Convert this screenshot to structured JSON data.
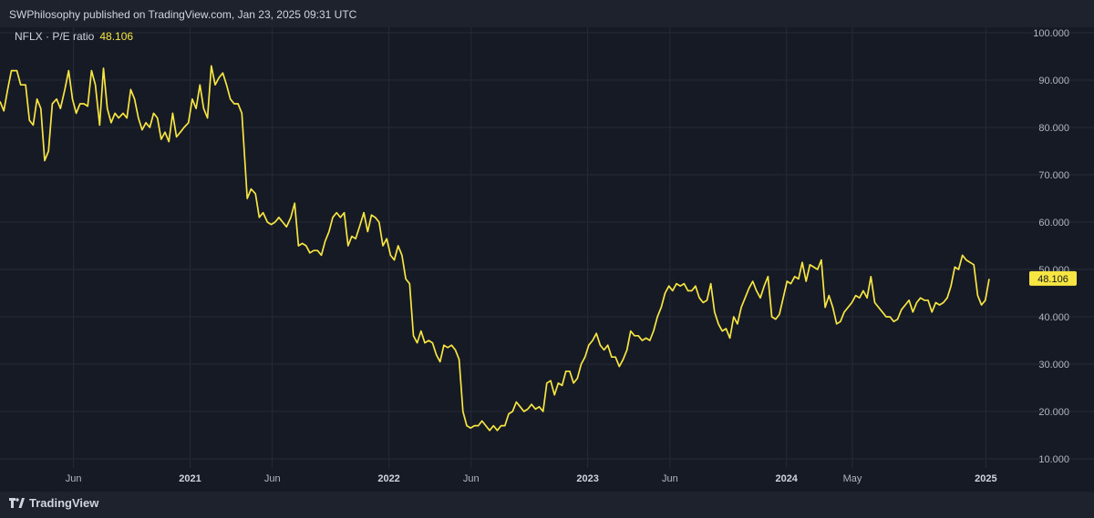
{
  "header": {
    "attribution": "SWPhilosophy published on TradingView.com, Jan 23, 2025 09:31 UTC"
  },
  "legend": {
    "symbol": "NFLX · P/E ratio",
    "value": "48.106"
  },
  "brand": {
    "name": "TradingView",
    "icon": "tradingview-logo-icon"
  },
  "colors": {
    "line": "#f7e542",
    "background": "#161a25",
    "grid": "#262a35",
    "axis_text": "#b2b5be",
    "price_label_bg": "#f7e542"
  },
  "chart_data": {
    "type": "line",
    "title": "",
    "xlabel": "",
    "ylabel": "",
    "ylim": [
      10,
      100
    ],
    "y_ticks": [
      "100.000",
      "90.000",
      "80.000",
      "70.000",
      "60.000",
      "50.000",
      "40.000",
      "30.000",
      "20.000",
      "10.000"
    ],
    "x_ticks": [
      {
        "label": "Jun",
        "date": "2020-06-01",
        "bold": false
      },
      {
        "label": "2021",
        "date": "2021-01-01",
        "bold": true
      },
      {
        "label": "Jun",
        "date": "2021-06-01",
        "bold": false
      },
      {
        "label": "2022",
        "date": "2022-01-01",
        "bold": true
      },
      {
        "label": "Jun",
        "date": "2022-06-01",
        "bold": false
      },
      {
        "label": "2023",
        "date": "2023-01-01",
        "bold": true
      },
      {
        "label": "Jun",
        "date": "2023-06-01",
        "bold": false
      },
      {
        "label": "2024",
        "date": "2024-01-01",
        "bold": true
      },
      {
        "label": "May",
        "date": "2024-05-01",
        "bold": false
      },
      {
        "label": "2025",
        "date": "2025-01-01",
        "bold": true
      }
    ],
    "xlim": [
      "2020-01-18",
      "2025-03-10"
    ],
    "last_value_label": "48.106",
    "grid": true,
    "series": [
      {
        "name": "",
        "points": [
          [
            "2020-01-18",
            85.5
          ],
          [
            "2020-01-25",
            83.5
          ],
          [
            "2020-02-01",
            88
          ],
          [
            "2020-02-08",
            92
          ],
          [
            "2020-02-18",
            92
          ],
          [
            "2020-02-25",
            89
          ],
          [
            "2020-03-05",
            89
          ],
          [
            "2020-03-12",
            81.5
          ],
          [
            "2020-03-19",
            80.5
          ],
          [
            "2020-03-26",
            86
          ],
          [
            "2020-04-02",
            84
          ],
          [
            "2020-04-09",
            73
          ],
          [
            "2020-04-16",
            75
          ],
          [
            "2020-04-23",
            85
          ],
          [
            "2020-05-01",
            86
          ],
          [
            "2020-05-08",
            84
          ],
          [
            "2020-05-16",
            88
          ],
          [
            "2020-05-23",
            92
          ],
          [
            "2020-05-30",
            86
          ],
          [
            "2020-06-06",
            83
          ],
          [
            "2020-06-13",
            85
          ],
          [
            "2020-06-20",
            85
          ],
          [
            "2020-06-27",
            84.5
          ],
          [
            "2020-07-04",
            92
          ],
          [
            "2020-07-11",
            89
          ],
          [
            "2020-07-19",
            80.5
          ],
          [
            "2020-07-26",
            92.5
          ],
          [
            "2020-08-02",
            84
          ],
          [
            "2020-08-09",
            81
          ],
          [
            "2020-08-16",
            83
          ],
          [
            "2020-08-23",
            82
          ],
          [
            "2020-08-31",
            83
          ],
          [
            "2020-09-07",
            82
          ],
          [
            "2020-09-14",
            88
          ],
          [
            "2020-09-21",
            86
          ],
          [
            "2020-09-28",
            82
          ],
          [
            "2020-10-05",
            79.5
          ],
          [
            "2020-10-12",
            81
          ],
          [
            "2020-10-19",
            80
          ],
          [
            "2020-10-26",
            83
          ],
          [
            "2020-11-02",
            82
          ],
          [
            "2020-11-09",
            77.5
          ],
          [
            "2020-11-16",
            79
          ],
          [
            "2020-11-23",
            77
          ],
          [
            "2020-11-30",
            83
          ],
          [
            "2020-12-07",
            78
          ],
          [
            "2020-12-14",
            79
          ],
          [
            "2020-12-21",
            80
          ],
          [
            "2020-12-29",
            81
          ],
          [
            "2021-01-05",
            86
          ],
          [
            "2021-01-12",
            84
          ],
          [
            "2021-01-19",
            89
          ],
          [
            "2021-01-26",
            84
          ],
          [
            "2021-02-02",
            82
          ],
          [
            "2021-02-09",
            93
          ],
          [
            "2021-02-16",
            89
          ],
          [
            "2021-02-23",
            90.5
          ],
          [
            "2021-03-02",
            91.5
          ],
          [
            "2021-03-09",
            89
          ],
          [
            "2021-03-16",
            86
          ],
          [
            "2021-03-23",
            85
          ],
          [
            "2021-03-30",
            85
          ],
          [
            "2021-04-06",
            83
          ],
          [
            "2021-04-16",
            65
          ],
          [
            "2021-04-23",
            67
          ],
          [
            "2021-05-01",
            66
          ],
          [
            "2021-05-08",
            61
          ],
          [
            "2021-05-15",
            62
          ],
          [
            "2021-05-23",
            60
          ],
          [
            "2021-05-30",
            59.5
          ],
          [
            "2021-06-06",
            60
          ],
          [
            "2021-06-13",
            61
          ],
          [
            "2021-06-20",
            60
          ],
          [
            "2021-06-27",
            59
          ],
          [
            "2021-07-05",
            61
          ],
          [
            "2021-07-12",
            64
          ],
          [
            "2021-07-19",
            55
          ],
          [
            "2021-07-26",
            55.5
          ],
          [
            "2021-08-02",
            55
          ],
          [
            "2021-08-09",
            53.5
          ],
          [
            "2021-08-16",
            54
          ],
          [
            "2021-08-23",
            54
          ],
          [
            "2021-08-30",
            53
          ],
          [
            "2021-09-06",
            56
          ],
          [
            "2021-09-13",
            58
          ],
          [
            "2021-09-20",
            61
          ],
          [
            "2021-09-27",
            62
          ],
          [
            "2021-10-04",
            61
          ],
          [
            "2021-10-11",
            62
          ],
          [
            "2021-10-18",
            55
          ],
          [
            "2021-10-25",
            57
          ],
          [
            "2021-11-01",
            56.5
          ],
          [
            "2021-11-08",
            59
          ],
          [
            "2021-11-16",
            62
          ],
          [
            "2021-11-23",
            58
          ],
          [
            "2021-11-30",
            61.5
          ],
          [
            "2021-12-07",
            61
          ],
          [
            "2021-12-14",
            60
          ],
          [
            "2021-12-21",
            55
          ],
          [
            "2021-12-28",
            56.5
          ],
          [
            "2022-01-04",
            53
          ],
          [
            "2022-01-11",
            52
          ],
          [
            "2022-01-18",
            55
          ],
          [
            "2022-01-25",
            53
          ],
          [
            "2022-02-01",
            48
          ],
          [
            "2022-02-08",
            47
          ],
          [
            "2022-02-15",
            36
          ],
          [
            "2022-02-22",
            34.5
          ],
          [
            "2022-03-01",
            37
          ],
          [
            "2022-03-08",
            34.5
          ],
          [
            "2022-03-15",
            35
          ],
          [
            "2022-03-22",
            34.5
          ],
          [
            "2022-03-29",
            32
          ],
          [
            "2022-04-05",
            30.5
          ],
          [
            "2022-04-12",
            34
          ],
          [
            "2022-04-19",
            33.5
          ],
          [
            "2022-04-26",
            34
          ],
          [
            "2022-05-03",
            33
          ],
          [
            "2022-05-10",
            31
          ],
          [
            "2022-05-17",
            20
          ],
          [
            "2022-05-24",
            17
          ],
          [
            "2022-05-31",
            16.5
          ],
          [
            "2022-06-07",
            17
          ],
          [
            "2022-06-14",
            17
          ],
          [
            "2022-06-21",
            18
          ],
          [
            "2022-06-28",
            17
          ],
          [
            "2022-07-05",
            16
          ],
          [
            "2022-07-12",
            17
          ],
          [
            "2022-07-19",
            16
          ],
          [
            "2022-07-26",
            17
          ],
          [
            "2022-08-02",
            17
          ],
          [
            "2022-08-09",
            19.5
          ],
          [
            "2022-08-16",
            20
          ],
          [
            "2022-08-23",
            22
          ],
          [
            "2022-08-30",
            21
          ],
          [
            "2022-09-06",
            20
          ],
          [
            "2022-09-13",
            20.5
          ],
          [
            "2022-09-20",
            21.5
          ],
          [
            "2022-09-27",
            20.5
          ],
          [
            "2022-10-04",
            21
          ],
          [
            "2022-10-11",
            20
          ],
          [
            "2022-10-18",
            26
          ],
          [
            "2022-10-25",
            26.5
          ],
          [
            "2022-11-01",
            23.5
          ],
          [
            "2022-11-08",
            26
          ],
          [
            "2022-11-15",
            25.5
          ],
          [
            "2022-11-22",
            28.5
          ],
          [
            "2022-11-29",
            28.5
          ],
          [
            "2022-12-06",
            26
          ],
          [
            "2022-12-13",
            27
          ],
          [
            "2022-12-20",
            30
          ],
          [
            "2022-12-27",
            31.5
          ],
          [
            "2023-01-03",
            34
          ],
          [
            "2023-01-10",
            35
          ],
          [
            "2023-01-17",
            36.5
          ],
          [
            "2023-01-24",
            34
          ],
          [
            "2023-01-31",
            33
          ],
          [
            "2023-02-07",
            34
          ],
          [
            "2023-02-14",
            31.5
          ],
          [
            "2023-02-21",
            31.5
          ],
          [
            "2023-02-28",
            29.5
          ],
          [
            "2023-03-07",
            31
          ],
          [
            "2023-03-14",
            33
          ],
          [
            "2023-03-21",
            37
          ],
          [
            "2023-03-28",
            36
          ],
          [
            "2023-04-04",
            36
          ],
          [
            "2023-04-11",
            35
          ],
          [
            "2023-04-18",
            35.5
          ],
          [
            "2023-04-25",
            35
          ],
          [
            "2023-05-02",
            37
          ],
          [
            "2023-05-09",
            40
          ],
          [
            "2023-05-16",
            42
          ],
          [
            "2023-05-23",
            45
          ],
          [
            "2023-05-30",
            46.5
          ],
          [
            "2023-06-06",
            45.5
          ],
          [
            "2023-06-13",
            47
          ],
          [
            "2023-06-20",
            46.5
          ],
          [
            "2023-06-27",
            47
          ],
          [
            "2023-07-04",
            45.5
          ],
          [
            "2023-07-11",
            45.5
          ],
          [
            "2023-07-18",
            46.5
          ],
          [
            "2023-07-25",
            44
          ],
          [
            "2023-08-01",
            43
          ],
          [
            "2023-08-08",
            43.5
          ],
          [
            "2023-08-15",
            47
          ],
          [
            "2023-08-22",
            41
          ],
          [
            "2023-08-29",
            38.5
          ],
          [
            "2023-09-05",
            37
          ],
          [
            "2023-09-12",
            37.5
          ],
          [
            "2023-09-19",
            35.5
          ],
          [
            "2023-09-26",
            40
          ],
          [
            "2023-10-03",
            38.5
          ],
          [
            "2023-10-10",
            42
          ],
          [
            "2023-10-17",
            44
          ],
          [
            "2023-10-24",
            46
          ],
          [
            "2023-10-31",
            47.5
          ],
          [
            "2023-11-07",
            45.5
          ],
          [
            "2023-11-14",
            44
          ],
          [
            "2023-11-21",
            46.5
          ],
          [
            "2023-11-28",
            48.5
          ],
          [
            "2023-12-05",
            40
          ],
          [
            "2023-12-12",
            39.5
          ],
          [
            "2023-12-19",
            40.5
          ],
          [
            "2024-01-02",
            47.5
          ],
          [
            "2024-01-09",
            47
          ],
          [
            "2024-01-16",
            48.5
          ],
          [
            "2024-01-23",
            48
          ],
          [
            "2024-01-30",
            51.5
          ],
          [
            "2024-02-06",
            47.5
          ],
          [
            "2024-02-13",
            51
          ],
          [
            "2024-02-20",
            50.5
          ],
          [
            "2024-02-27",
            50
          ],
          [
            "2024-03-05",
            52
          ],
          [
            "2024-03-12",
            42
          ],
          [
            "2024-03-19",
            44.5
          ],
          [
            "2024-03-26",
            42
          ],
          [
            "2024-04-02",
            38.5
          ],
          [
            "2024-04-09",
            39
          ],
          [
            "2024-04-16",
            41
          ],
          [
            "2024-04-23",
            42
          ],
          [
            "2024-04-30",
            43
          ],
          [
            "2024-05-07",
            44.5
          ],
          [
            "2024-05-14",
            44
          ],
          [
            "2024-05-21",
            45.5
          ],
          [
            "2024-05-28",
            44
          ],
          [
            "2024-06-04",
            48.5
          ],
          [
            "2024-06-11",
            43
          ],
          [
            "2024-06-18",
            42
          ],
          [
            "2024-06-25",
            41
          ],
          [
            "2024-07-02",
            40
          ],
          [
            "2024-07-09",
            40
          ],
          [
            "2024-07-16",
            39
          ],
          [
            "2024-07-23",
            39.5
          ],
          [
            "2024-07-30",
            41.5
          ],
          [
            "2024-08-06",
            42.5
          ],
          [
            "2024-08-13",
            43.5
          ],
          [
            "2024-08-20",
            41
          ],
          [
            "2024-08-27",
            43
          ],
          [
            "2024-09-03",
            44
          ],
          [
            "2024-09-10",
            43.5
          ],
          [
            "2024-09-17",
            43.5
          ],
          [
            "2024-09-24",
            41
          ],
          [
            "2024-10-01",
            43
          ],
          [
            "2024-10-08",
            42.5
          ],
          [
            "2024-10-15",
            43
          ],
          [
            "2024-10-22",
            44
          ],
          [
            "2024-10-29",
            46.5
          ],
          [
            "2024-11-05",
            50.5
          ],
          [
            "2024-11-12",
            50
          ],
          [
            "2024-11-19",
            53
          ],
          [
            "2024-11-26",
            52
          ],
          [
            "2024-12-03",
            51.5
          ],
          [
            "2024-12-10",
            51
          ],
          [
            "2024-12-17",
            44.5
          ],
          [
            "2024-12-24",
            42.5
          ],
          [
            "2024-12-31",
            43.5
          ],
          [
            "2025-01-07",
            48
          ]
        ]
      }
    ]
  }
}
